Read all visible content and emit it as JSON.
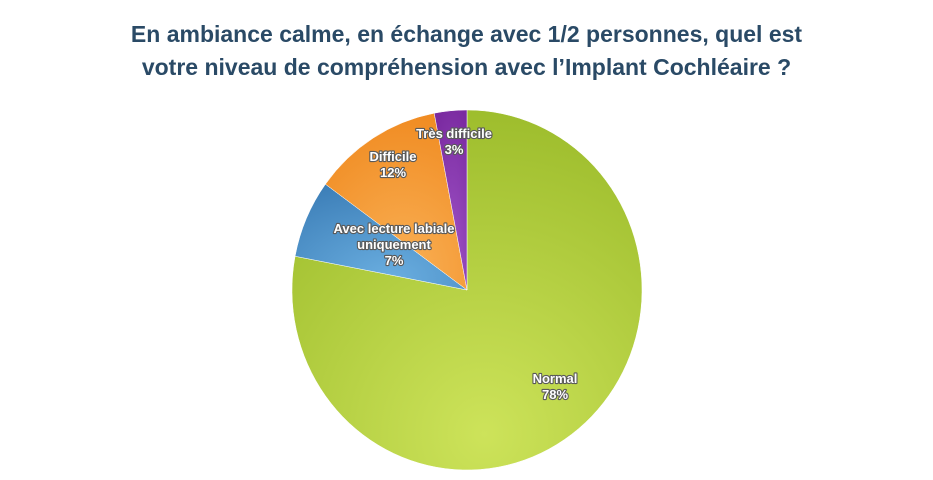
{
  "chart_data": {
    "type": "pie",
    "title_lines": [
      "En ambiance calme, en échange avec 1/2 personnes, quel est",
      "votre niveau de compréhension avec l’Implant Cochléaire ?"
    ],
    "slices": [
      {
        "label_lines": [
          "Normal"
        ],
        "pct_label": "78%",
        "value": 78,
        "color": "#9bbb2a",
        "light": "#cde35a"
      },
      {
        "label_lines": [
          "Avec lecture labiale",
          "uniquement"
        ],
        "pct_label": "7%",
        "value": 7,
        "color": "#3d7fb8",
        "light": "#6aaee0"
      },
      {
        "label_lines": [
          "Difficile"
        ],
        "pct_label": "12%",
        "value": 12,
        "color": "#f08a20",
        "light": "#f9b055"
      },
      {
        "label_lines": [
          "Très difficile"
        ],
        "pct_label": "3%",
        "value": 3,
        "color": "#7a2aa0",
        "light": "#a055c8"
      }
    ],
    "legend": "none"
  }
}
